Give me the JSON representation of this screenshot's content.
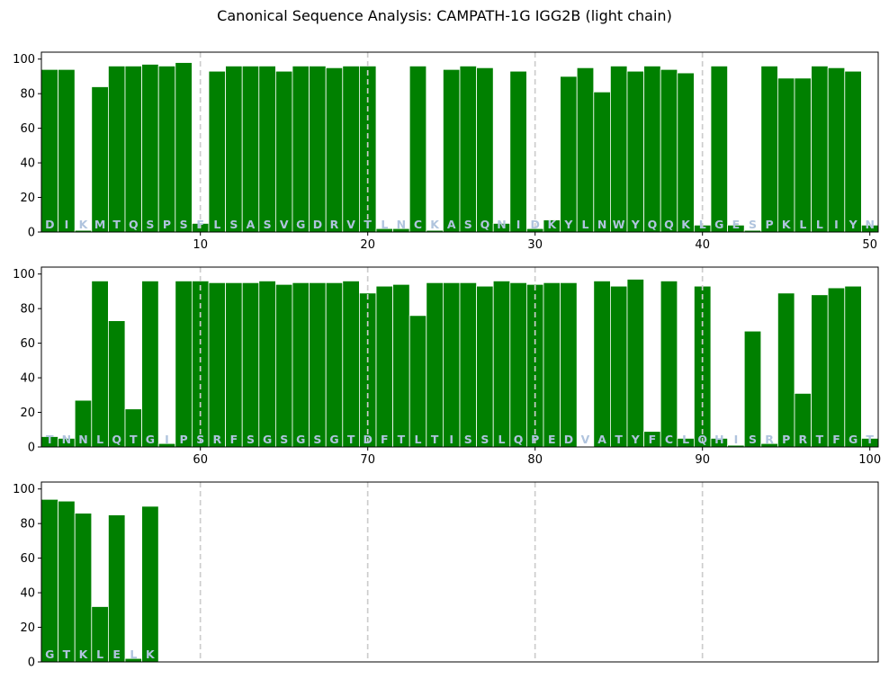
{
  "chart_data": {
    "type": "bar",
    "title": "Canonical Sequence Analysis: CAMPATH-1G IGG2B (light chain)",
    "xlabel": "",
    "ylabel": "",
    "ylim": [
      0,
      104
    ],
    "yticks": [
      0,
      20,
      40,
      60,
      80,
      100
    ],
    "reference_lines": [
      10,
      20,
      30,
      40,
      60,
      70,
      80,
      90
    ],
    "bar_color": "#008000",
    "reference_line_color": "#cccccc",
    "residue_label_color": "#b0c4de",
    "panels": [
      {
        "xlim": [
          0.5,
          50.5
        ],
        "xticks": [
          10,
          20,
          30,
          40,
          50
        ],
        "positions": [
          1,
          2,
          3,
          4,
          5,
          6,
          7,
          8,
          9,
          10,
          11,
          12,
          13,
          14,
          15,
          16,
          17,
          18,
          19,
          20,
          21,
          22,
          23,
          24,
          25,
          26,
          27,
          28,
          29,
          30,
          31,
          32,
          33,
          34,
          35,
          36,
          37,
          38,
          39,
          40,
          41,
          42,
          43,
          44,
          45,
          46,
          47,
          48,
          49,
          50
        ],
        "residues": [
          "D",
          "I",
          "K",
          "M",
          "T",
          "Q",
          "S",
          "P",
          "S",
          "F",
          "L",
          "S",
          "A",
          "S",
          "V",
          "G",
          "D",
          "R",
          "V",
          "T",
          "L",
          "N",
          "C",
          "K",
          "A",
          "S",
          "Q",
          "N",
          "I",
          "D",
          "K",
          "Y",
          "L",
          "N",
          "W",
          "Y",
          "Q",
          "Q",
          "K",
          "L",
          "G",
          "E",
          "S",
          "P",
          "K",
          "L",
          "L",
          "I",
          "Y",
          "N"
        ],
        "values": [
          94,
          94,
          1,
          84,
          96,
          96,
          97,
          96,
          98,
          5,
          93,
          96,
          96,
          96,
          93,
          96,
          96,
          95,
          96,
          96,
          2,
          2,
          96,
          1,
          94,
          96,
          95,
          5,
          93,
          2,
          7,
          90,
          95,
          81,
          96,
          93,
          96,
          94,
          92,
          4,
          96,
          4,
          1,
          96,
          89,
          89,
          96,
          95,
          93,
          4
        ]
      },
      {
        "xlim": [
          50.5,
          100.5
        ],
        "xticks": [
          60,
          70,
          80,
          90,
          100
        ],
        "positions": [
          51,
          52,
          53,
          54,
          55,
          56,
          57,
          58,
          59,
          60,
          61,
          62,
          63,
          64,
          65,
          66,
          67,
          68,
          69,
          70,
          71,
          72,
          73,
          74,
          75,
          76,
          77,
          78,
          79,
          80,
          81,
          82,
          83,
          84,
          85,
          86,
          87,
          88,
          89,
          90,
          91,
          92,
          93,
          94,
          95,
          96,
          97,
          98,
          99,
          100
        ],
        "residues": [
          "T",
          "N",
          "N",
          "L",
          "Q",
          "T",
          "G",
          "I",
          "P",
          "S",
          "R",
          "F",
          "S",
          "G",
          "S",
          "G",
          "S",
          "G",
          "T",
          "D",
          "F",
          "T",
          "L",
          "T",
          "I",
          "S",
          "S",
          "L",
          "Q",
          "P",
          "E",
          "D",
          "V",
          "A",
          "T",
          "Y",
          "F",
          "C",
          "L",
          "Q",
          "H",
          "I",
          "S",
          "R",
          "P",
          "R",
          "T",
          "F",
          "G",
          "T"
        ],
        "values": [
          6,
          5,
          27,
          96,
          73,
          22,
          96,
          2,
          96,
          96,
          95,
          95,
          95,
          96,
          94,
          95,
          95,
          95,
          96,
          89,
          93,
          94,
          76,
          95,
          95,
          95,
          93,
          96,
          95,
          94,
          95,
          95,
          0,
          96,
          93,
          97,
          9,
          96,
          5,
          93,
          5,
          1,
          67,
          2,
          89,
          31,
          88,
          92,
          93,
          5
        ]
      },
      {
        "xlim": [
          100.5,
          150.5
        ],
        "xticks": [],
        "positions": [
          101,
          102,
          103,
          104,
          105,
          106,
          107
        ],
        "residues": [
          "G",
          "T",
          "K",
          "L",
          "E",
          "L",
          "K"
        ],
        "values": [
          94,
          93,
          86,
          32,
          85,
          2,
          90
        ]
      }
    ]
  }
}
